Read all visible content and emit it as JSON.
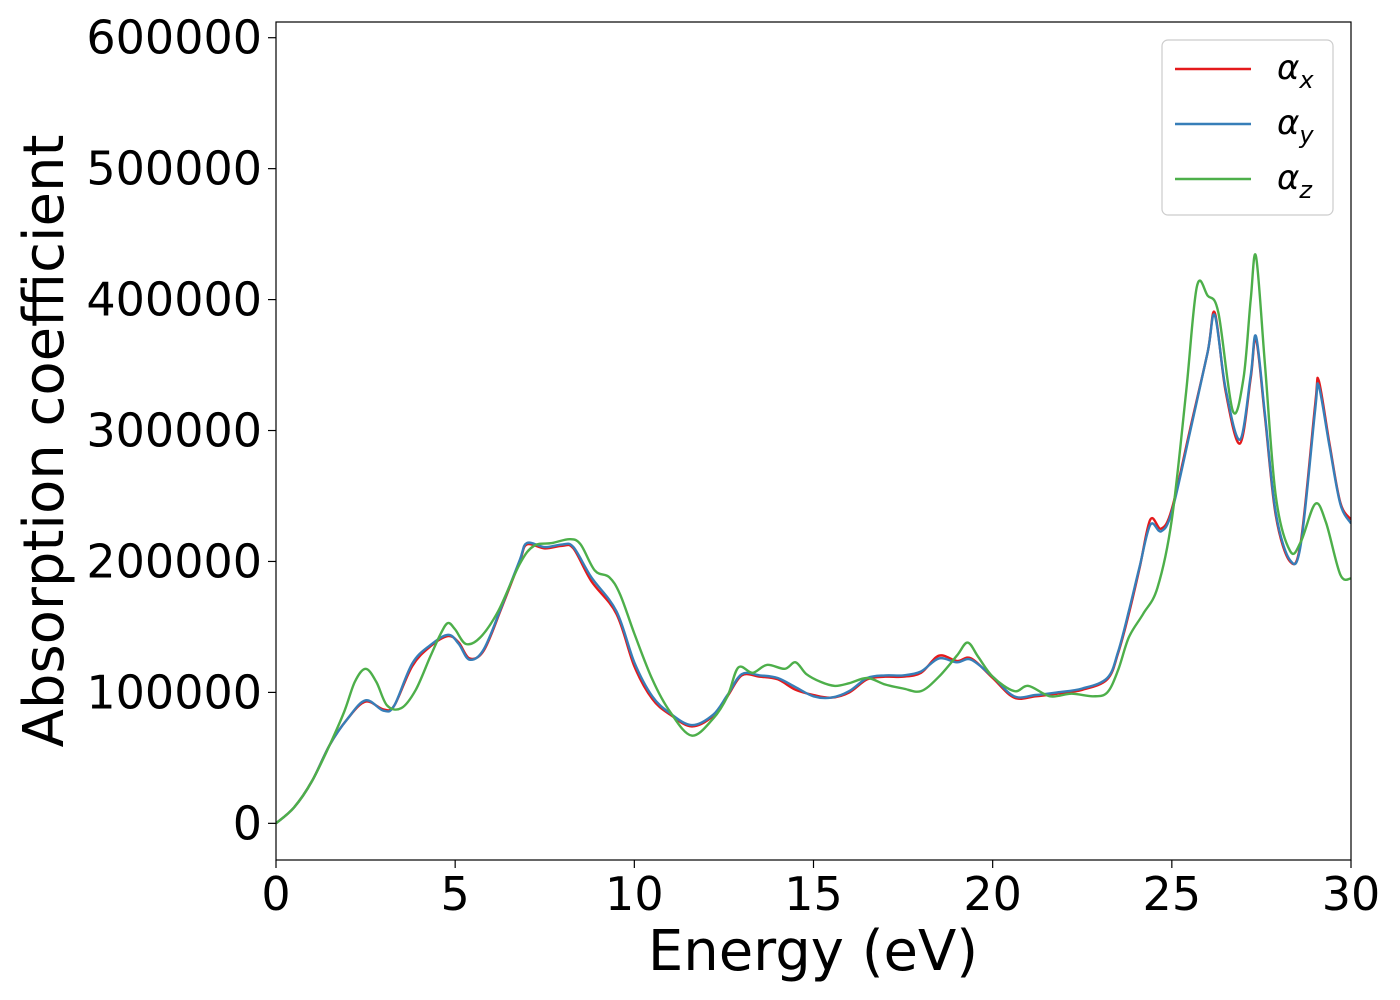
{
  "chart_data": {
    "type": "line",
    "xlabel": "Energy (eV)",
    "ylabel": "Absorption coefficient",
    "xlim": [
      0,
      30
    ],
    "ylim": [
      -28000,
      612000
    ],
    "xticks": [
      "0",
      "5",
      "10",
      "15",
      "20",
      "25",
      "30"
    ],
    "yticks": [
      "0",
      "100000",
      "200000",
      "300000",
      "400000",
      "500000",
      "600000"
    ],
    "grid": false,
    "legend_position": "top-right",
    "series": [
      {
        "name": "α",
        "subscript": "x",
        "color": "#e41a1c",
        "points": [
          [
            0,
            0
          ],
          [
            0.5,
            12000
          ],
          [
            1.0,
            32000
          ],
          [
            1.5,
            60000
          ],
          [
            2.0,
            80000
          ],
          [
            2.5,
            93000
          ],
          [
            3.0,
            87000
          ],
          [
            3.3,
            90000
          ],
          [
            3.8,
            120000
          ],
          [
            4.3,
            135000
          ],
          [
            4.8,
            143000
          ],
          [
            5.1,
            138000
          ],
          [
            5.4,
            126000
          ],
          [
            5.8,
            132000
          ],
          [
            6.3,
            165000
          ],
          [
            6.8,
            200000
          ],
          [
            7.0,
            213000
          ],
          [
            7.5,
            210000
          ],
          [
            8.0,
            212000
          ],
          [
            8.3,
            210000
          ],
          [
            8.8,
            185000
          ],
          [
            9.5,
            160000
          ],
          [
            10.0,
            120000
          ],
          [
            10.5,
            95000
          ],
          [
            11.0,
            83000
          ],
          [
            11.6,
            74000
          ],
          [
            12.2,
            82000
          ],
          [
            12.6,
            97000
          ],
          [
            13.0,
            113000
          ],
          [
            13.5,
            112000
          ],
          [
            14.0,
            110000
          ],
          [
            14.5,
            102000
          ],
          [
            15.0,
            98000
          ],
          [
            15.5,
            96000
          ],
          [
            16.0,
            100000
          ],
          [
            16.5,
            110000
          ],
          [
            17.0,
            112000
          ],
          [
            17.5,
            112000
          ],
          [
            18.0,
            115000
          ],
          [
            18.5,
            128000
          ],
          [
            19.0,
            124000
          ],
          [
            19.4,
            126000
          ],
          [
            20.0,
            111000
          ],
          [
            20.6,
            96000
          ],
          [
            21.2,
            97000
          ],
          [
            21.8,
            99000
          ],
          [
            22.5,
            102000
          ],
          [
            23.2,
            110000
          ],
          [
            23.5,
            130000
          ],
          [
            23.8,
            160000
          ],
          [
            24.1,
            195000
          ],
          [
            24.4,
            232000
          ],
          [
            24.7,
            225000
          ],
          [
            25.0,
            240000
          ],
          [
            25.5,
            300000
          ],
          [
            26.0,
            360000
          ],
          [
            26.2,
            390000
          ],
          [
            26.5,
            330000
          ],
          [
            26.9,
            290000
          ],
          [
            27.2,
            340000
          ],
          [
            27.35,
            370000
          ],
          [
            27.6,
            310000
          ],
          [
            27.9,
            235000
          ],
          [
            28.3,
            200000
          ],
          [
            28.6,
            215000
          ],
          [
            29.0,
            320000
          ],
          [
            29.1,
            338000
          ],
          [
            29.4,
            290000
          ],
          [
            29.7,
            245000
          ],
          [
            30.0,
            232000
          ]
        ]
      },
      {
        "name": "α",
        "subscript": "y",
        "color": "#377eb8",
        "points": [
          [
            0,
            0
          ],
          [
            0.5,
            12000
          ],
          [
            1.0,
            32000
          ],
          [
            1.5,
            60000
          ],
          [
            2.0,
            80000
          ],
          [
            2.5,
            94000
          ],
          [
            3.0,
            86000
          ],
          [
            3.3,
            90000
          ],
          [
            3.8,
            122000
          ],
          [
            4.3,
            136000
          ],
          [
            4.8,
            144000
          ],
          [
            5.1,
            137000
          ],
          [
            5.4,
            125000
          ],
          [
            5.8,
            133000
          ],
          [
            6.3,
            166000
          ],
          [
            6.8,
            201000
          ],
          [
            7.0,
            214000
          ],
          [
            7.5,
            211000
          ],
          [
            8.0,
            213000
          ],
          [
            8.3,
            211000
          ],
          [
            8.8,
            188000
          ],
          [
            9.5,
            162000
          ],
          [
            10.0,
            123000
          ],
          [
            10.5,
            97000
          ],
          [
            11.0,
            84000
          ],
          [
            11.6,
            75000
          ],
          [
            12.2,
            83000
          ],
          [
            12.6,
            98000
          ],
          [
            13.0,
            114000
          ],
          [
            13.5,
            113000
          ],
          [
            14.0,
            111000
          ],
          [
            14.5,
            104000
          ],
          [
            15.0,
            97000
          ],
          [
            15.5,
            96000
          ],
          [
            16.0,
            101000
          ],
          [
            16.5,
            111000
          ],
          [
            17.0,
            113000
          ],
          [
            17.5,
            113000
          ],
          [
            18.0,
            116000
          ],
          [
            18.5,
            126000
          ],
          [
            19.0,
            123000
          ],
          [
            19.4,
            125000
          ],
          [
            20.0,
            112000
          ],
          [
            20.6,
            97000
          ],
          [
            21.2,
            98000
          ],
          [
            21.8,
            100000
          ],
          [
            22.5,
            103000
          ],
          [
            23.2,
            111000
          ],
          [
            23.5,
            131000
          ],
          [
            23.8,
            162000
          ],
          [
            24.1,
            196000
          ],
          [
            24.4,
            228000
          ],
          [
            24.7,
            223000
          ],
          [
            25.0,
            238000
          ],
          [
            25.5,
            298000
          ],
          [
            26.0,
            360000
          ],
          [
            26.2,
            388000
          ],
          [
            26.5,
            332000
          ],
          [
            26.9,
            293000
          ],
          [
            27.2,
            342000
          ],
          [
            27.35,
            372000
          ],
          [
            27.6,
            312000
          ],
          [
            27.9,
            237000
          ],
          [
            28.3,
            201000
          ],
          [
            28.6,
            213000
          ],
          [
            29.0,
            316000
          ],
          [
            29.1,
            334000
          ],
          [
            29.4,
            288000
          ],
          [
            29.7,
            244000
          ],
          [
            30.0,
            229000
          ]
        ]
      },
      {
        "name": "α",
        "subscript": "z",
        "color": "#4daf4a",
        "points": [
          [
            0,
            0
          ],
          [
            0.5,
            12000
          ],
          [
            1.0,
            32000
          ],
          [
            1.5,
            60000
          ],
          [
            1.9,
            85000
          ],
          [
            2.2,
            108000
          ],
          [
            2.5,
            118000
          ],
          [
            2.8,
            108000
          ],
          [
            3.1,
            90000
          ],
          [
            3.5,
            88000
          ],
          [
            3.9,
            102000
          ],
          [
            4.3,
            127000
          ],
          [
            4.6,
            145000
          ],
          [
            4.8,
            153000
          ],
          [
            5.0,
            148000
          ],
          [
            5.3,
            137000
          ],
          [
            5.7,
            142000
          ],
          [
            6.2,
            162000
          ],
          [
            6.8,
            198000
          ],
          [
            7.2,
            212000
          ],
          [
            7.7,
            214000
          ],
          [
            8.2,
            217000
          ],
          [
            8.5,
            213000
          ],
          [
            8.9,
            193000
          ],
          [
            9.3,
            188000
          ],
          [
            9.6,
            175000
          ],
          [
            10.0,
            145000
          ],
          [
            10.5,
            110000
          ],
          [
            11.0,
            85000
          ],
          [
            11.6,
            67000
          ],
          [
            12.2,
            80000
          ],
          [
            12.6,
            97000
          ],
          [
            12.9,
            119000
          ],
          [
            13.3,
            115000
          ],
          [
            13.7,
            121000
          ],
          [
            14.2,
            118000
          ],
          [
            14.5,
            123000
          ],
          [
            14.8,
            114000
          ],
          [
            15.2,
            108000
          ],
          [
            15.6,
            105000
          ],
          [
            16.0,
            107000
          ],
          [
            16.5,
            111000
          ],
          [
            17.0,
            106000
          ],
          [
            17.5,
            103000
          ],
          [
            18.0,
            101000
          ],
          [
            18.5,
            112000
          ],
          [
            19.0,
            128000
          ],
          [
            19.3,
            138000
          ],
          [
            19.6,
            127000
          ],
          [
            20.0,
            112000
          ],
          [
            20.6,
            101000
          ],
          [
            21.0,
            105000
          ],
          [
            21.6,
            97000
          ],
          [
            22.2,
            99000
          ],
          [
            22.8,
            97000
          ],
          [
            23.2,
            100000
          ],
          [
            23.5,
            117000
          ],
          [
            23.8,
            142000
          ],
          [
            24.2,
            160000
          ],
          [
            24.6,
            180000
          ],
          [
            25.0,
            232000
          ],
          [
            25.4,
            330000
          ],
          [
            25.7,
            410000
          ],
          [
            26.0,
            403000
          ],
          [
            26.3,
            390000
          ],
          [
            26.7,
            315000
          ],
          [
            27.0,
            340000
          ],
          [
            27.2,
            400000
          ],
          [
            27.35,
            433000
          ],
          [
            27.6,
            350000
          ],
          [
            27.9,
            250000
          ],
          [
            28.3,
            208000
          ],
          [
            28.6,
            215000
          ],
          [
            29.0,
            244000
          ],
          [
            29.3,
            230000
          ],
          [
            29.7,
            190000
          ],
          [
            30.0,
            187000
          ]
        ]
      }
    ]
  }
}
